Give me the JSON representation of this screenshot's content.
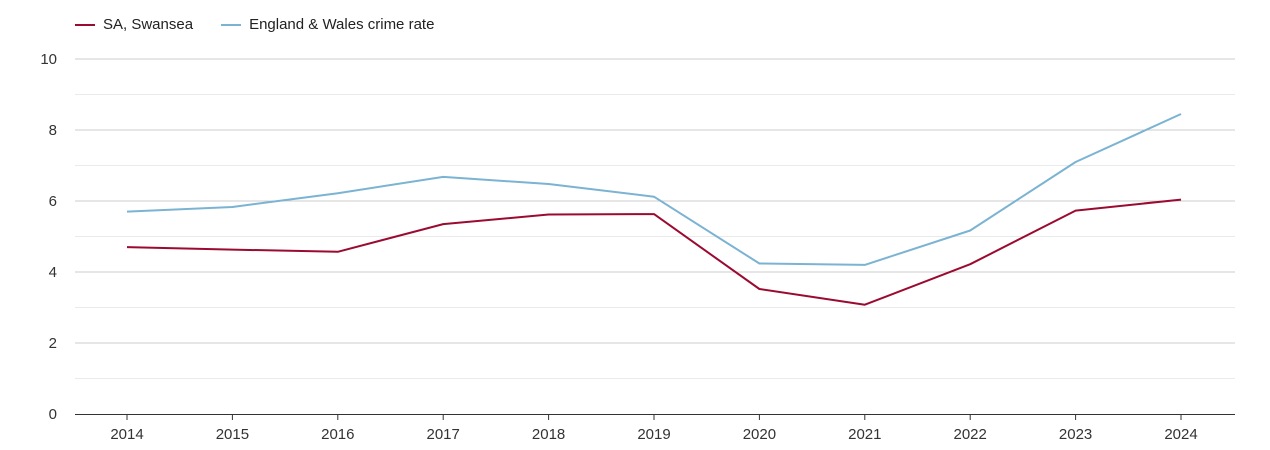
{
  "colors": {
    "series_0": "#9b0a30",
    "series_1": "#7bb3d2",
    "grid_major": "#cccccc",
    "grid_minor": "#eaeaea",
    "axis": "#333333"
  },
  "chart_data": {
    "type": "line",
    "title": "",
    "xlabel": "",
    "ylabel": "",
    "x": [
      "2014",
      "2015",
      "2016",
      "2017",
      "2018",
      "2019",
      "2020",
      "2021",
      "2022",
      "2023",
      "2024"
    ],
    "ylim": [
      0,
      10
    ],
    "yticks": [
      "0",
      "2",
      "4",
      "6",
      "8",
      "10"
    ],
    "grid": true,
    "legend_position": "top-left",
    "series": [
      {
        "name": "SA, Swansea",
        "color": "#9b0a30",
        "values": [
          4.7,
          4.63,
          4.57,
          5.35,
          5.62,
          5.63,
          3.52,
          3.08,
          4.22,
          5.73,
          6.04
        ]
      },
      {
        "name": "England & Wales crime rate",
        "color": "#7bb3d2",
        "values": [
          5.7,
          5.83,
          6.22,
          6.68,
          6.48,
          6.12,
          4.24,
          4.2,
          5.17,
          7.1,
          8.45
        ]
      }
    ]
  }
}
